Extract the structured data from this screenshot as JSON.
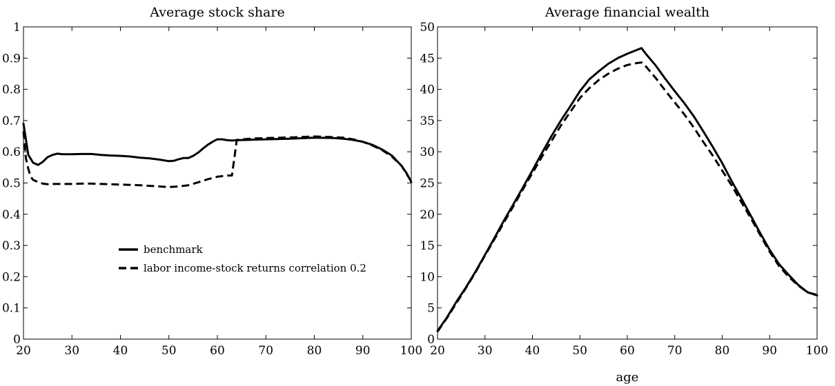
{
  "chart_data": [
    {
      "type": "line",
      "title": "Average stock share",
      "xlabel": "",
      "ylabel": "",
      "xlim": [
        20,
        100
      ],
      "ylim": [
        0,
        1
      ],
      "x_ticks": [
        20,
        30,
        40,
        50,
        60,
        70,
        80,
        90,
        100
      ],
      "y_ticks": [
        0,
        0.1,
        0.2,
        0.3,
        0.4,
        0.5,
        0.6,
        0.7,
        0.8,
        0.9,
        1
      ],
      "y_tick_labels": [
        "0",
        "0.1",
        "0.2",
        "0.3",
        "0.4",
        "0.5",
        "0.6",
        "0.7",
        "0.8",
        "0.9",
        "1"
      ],
      "grid": false,
      "legend_position": "lower-left",
      "series": [
        {
          "name": "benchmark",
          "style": "solid",
          "color": "#000000",
          "x": [
            20,
            21,
            22,
            23,
            24,
            25,
            26,
            27,
            28,
            30,
            32,
            34,
            36,
            38,
            40,
            42,
            44,
            46,
            48,
            50,
            51,
            52,
            53,
            54,
            55,
            56,
            57,
            58,
            59,
            60,
            61,
            62,
            63,
            64,
            66,
            68,
            70,
            75,
            80,
            84,
            86,
            88,
            90,
            92,
            94,
            96,
            98,
            99,
            100
          ],
          "y": [
            0.69,
            0.59,
            0.565,
            0.558,
            0.568,
            0.583,
            0.59,
            0.594,
            0.592,
            0.592,
            0.593,
            0.593,
            0.59,
            0.588,
            0.587,
            0.585,
            0.581,
            0.579,
            0.575,
            0.57,
            0.571,
            0.576,
            0.58,
            0.58,
            0.587,
            0.597,
            0.61,
            0.622,
            0.632,
            0.64,
            0.64,
            0.637,
            0.636,
            0.637,
            0.638,
            0.639,
            0.64,
            0.642,
            0.645,
            0.644,
            0.642,
            0.638,
            0.632,
            0.622,
            0.607,
            0.588,
            0.555,
            0.532,
            0.503
          ]
        },
        {
          "name": "labor income-stock returns correlation 0.2",
          "style": "dashed",
          "color": "#000000",
          "x": [
            20,
            20.5,
            21,
            21.5,
            22,
            23,
            24,
            25,
            26,
            28,
            30,
            32,
            34,
            36,
            38,
            40,
            42,
            44,
            46,
            48,
            50,
            52,
            54,
            56,
            58,
            60,
            62,
            63,
            63.5,
            64,
            66,
            68,
            70,
            75,
            80,
            84,
            86,
            88,
            90,
            92,
            94,
            96,
            98,
            99,
            100
          ],
          "y": [
            0.665,
            0.58,
            0.545,
            0.52,
            0.51,
            0.503,
            0.498,
            0.496,
            0.497,
            0.497,
            0.497,
            0.498,
            0.498,
            0.497,
            0.496,
            0.495,
            0.494,
            0.493,
            0.491,
            0.489,
            0.487,
            0.489,
            0.493,
            0.502,
            0.512,
            0.52,
            0.524,
            0.524,
            0.58,
            0.638,
            0.641,
            0.643,
            0.644,
            0.646,
            0.649,
            0.647,
            0.645,
            0.64,
            0.632,
            0.62,
            0.605,
            0.585,
            0.555,
            0.53,
            0.505
          ]
        }
      ]
    },
    {
      "type": "line",
      "title": "Average financial wealth",
      "xlabel": "age",
      "ylabel": "",
      "xlim": [
        20,
        100
      ],
      "ylim": [
        0,
        50
      ],
      "x_ticks": [
        20,
        30,
        40,
        50,
        60,
        70,
        80,
        90,
        100
      ],
      "y_ticks": [
        0,
        5,
        10,
        15,
        20,
        25,
        30,
        35,
        40,
        45,
        50
      ],
      "y_tick_labels": [
        "0",
        "5",
        "10",
        "15",
        "20",
        "25",
        "30",
        "35",
        "40",
        "45",
        "50"
      ],
      "grid": false,
      "series": [
        {
          "style": "solid",
          "color": "#000000",
          "x": [
            20,
            22,
            24,
            26,
            28,
            30,
            32,
            34,
            36,
            38,
            40,
            42,
            44,
            46,
            48,
            50,
            52,
            54,
            56,
            58,
            60,
            62,
            63,
            64,
            66,
            68,
            70,
            72,
            74,
            76,
            78,
            80,
            82,
            84,
            86,
            88,
            90,
            92,
            94,
            96,
            98,
            100
          ],
          "y": [
            1.3,
            3.5,
            6.0,
            8.3,
            10.8,
            13.5,
            16.2,
            19.0,
            21.6,
            24.3,
            27.0,
            29.8,
            32.5,
            35.0,
            37.3,
            39.7,
            41.6,
            42.9,
            44.1,
            45.0,
            45.7,
            46.3,
            46.6,
            45.6,
            43.8,
            41.7,
            39.7,
            37.8,
            35.7,
            33.3,
            30.8,
            28.2,
            25.3,
            22.6,
            19.8,
            17.0,
            14.3,
            12.0,
            10.3,
            8.7,
            7.5,
            7.0
          ]
        },
        {
          "style": "dashed",
          "color": "#000000",
          "x": [
            20,
            22,
            24,
            26,
            28,
            30,
            32,
            34,
            36,
            38,
            40,
            42,
            44,
            46,
            48,
            50,
            52,
            54,
            56,
            58,
            60,
            62,
            63,
            64,
            66,
            68,
            70,
            72,
            74,
            76,
            78,
            80,
            82,
            84,
            86,
            88,
            90,
            92,
            94,
            96,
            98,
            100
          ],
          "y": [
            1.2,
            3.4,
            5.8,
            8.2,
            10.7,
            13.4,
            16.0,
            18.7,
            21.3,
            24.0,
            26.6,
            29.2,
            31.7,
            34.2,
            36.4,
            38.6,
            40.2,
            41.5,
            42.5,
            43.3,
            43.9,
            44.2,
            44.3,
            43.6,
            41.8,
            39.8,
            37.9,
            36.0,
            33.9,
            31.6,
            29.4,
            27.0,
            24.6,
            22.0,
            19.4,
            16.7,
            14.0,
            11.7,
            10.0,
            8.6,
            7.5,
            7.1
          ]
        }
      ]
    }
  ]
}
